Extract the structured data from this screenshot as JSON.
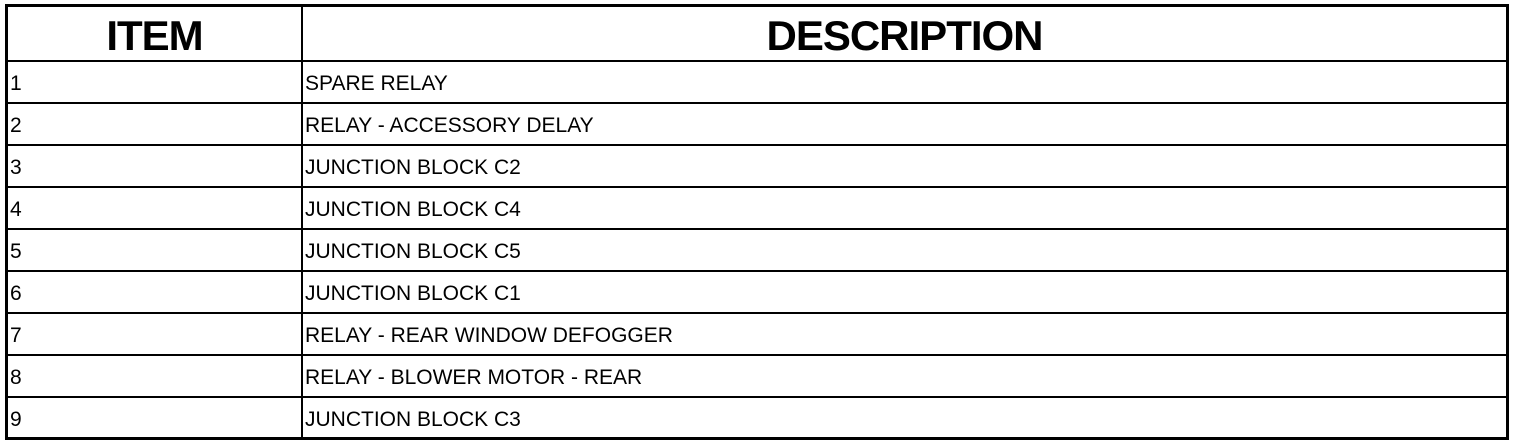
{
  "table": {
    "headers": {
      "item": "ITEM",
      "description": "DESCRIPTION"
    },
    "rows": [
      {
        "item": "1",
        "description": "SPARE RELAY"
      },
      {
        "item": "2",
        "description": "RELAY - ACCESSORY DELAY"
      },
      {
        "item": "3",
        "description": "JUNCTION BLOCK C2"
      },
      {
        "item": "4",
        "description": "JUNCTION BLOCK C4"
      },
      {
        "item": "5",
        "description": "JUNCTION BLOCK C5"
      },
      {
        "item": "6",
        "description": "JUNCTION BLOCK C1"
      },
      {
        "item": "7",
        "description": "RELAY - REAR WINDOW DEFOGGER"
      },
      {
        "item": "8",
        "description": "RELAY - BLOWER MOTOR - REAR"
      },
      {
        "item": "9",
        "description": "JUNCTION BLOCK C3"
      }
    ]
  }
}
